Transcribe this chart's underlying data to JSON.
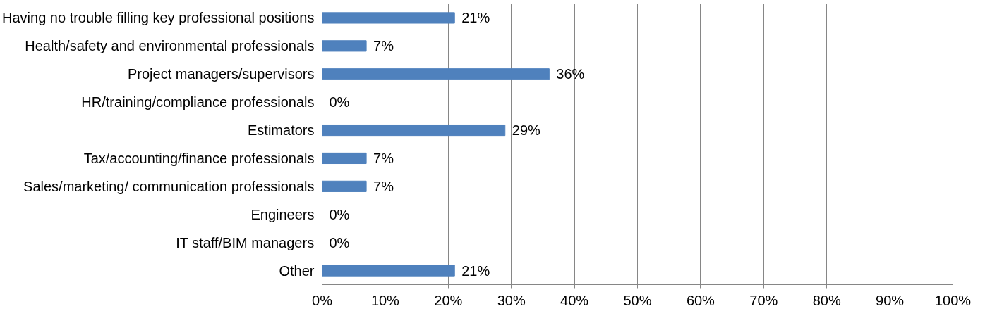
{
  "chart_data": {
    "type": "bar",
    "orientation": "horizontal",
    "categories": [
      "Having no trouble filling key professional positions",
      "Health/safety and environmental professionals",
      "Project managers/supervisors",
      "HR/training/compliance professionals",
      "Estimators",
      "Tax/accounting/finance professionals",
      "Sales/marketing/ communication professionals",
      "Engineers",
      "IT staff/BIM managers",
      "Other"
    ],
    "values": [
      21,
      7,
      36,
      0,
      29,
      7,
      7,
      0,
      0,
      21
    ],
    "value_labels": [
      "21%",
      "7%",
      "36%",
      "0%",
      "29%",
      "7%",
      "7%",
      "0%",
      "0%",
      "21%"
    ],
    "color": "#4f81bd",
    "xlim": [
      0,
      100
    ],
    "xticks": [
      {
        "value": 0,
        "label": "0%"
      },
      {
        "value": 10,
        "label": "10%"
      },
      {
        "value": 20,
        "label": "20%"
      },
      {
        "value": 30,
        "label": "30%"
      },
      {
        "value": 40,
        "label": "40%"
      },
      {
        "value": 50,
        "label": "50%"
      },
      {
        "value": 60,
        "label": "60%"
      },
      {
        "value": 70,
        "label": "70%"
      },
      {
        "value": 80,
        "label": "80%"
      },
      {
        "value": 90,
        "label": "90%"
      },
      {
        "value": 100,
        "label": "100%"
      }
    ],
    "grid": "x"
  }
}
